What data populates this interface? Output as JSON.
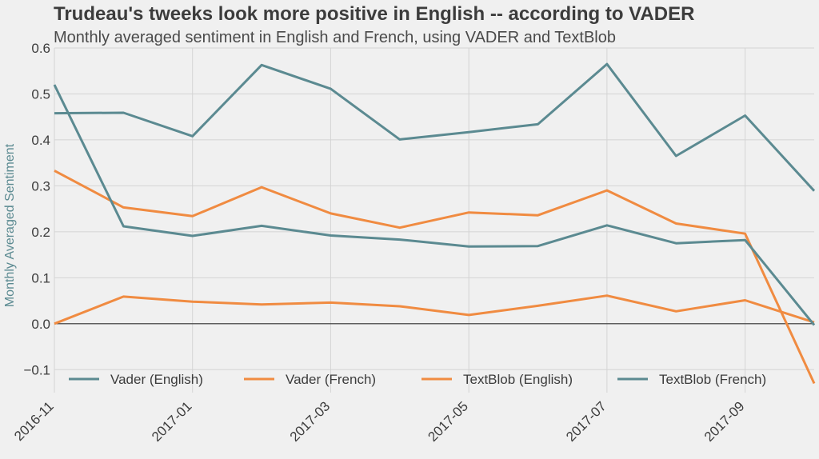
{
  "chart_data": {
    "type": "line",
    "title": "Trudeau's tweeks look more positive in English -- according to VADER",
    "subtitle": "Monthly averaged sentiment in English and French, using VADER and TextBlob",
    "xlabel": "",
    "ylabel": "Monthly Averaged Sentiment",
    "x": [
      "2016-11",
      "2016-12",
      "2017-01",
      "2017-02",
      "2017-03",
      "2017-04",
      "2017-05",
      "2017-06",
      "2017-07",
      "2017-08",
      "2017-09",
      "2017-10"
    ],
    "xticks": [
      "2016-11",
      "2017-01",
      "2017-03",
      "2017-05",
      "2017-07",
      "2017-09"
    ],
    "ylim": [
      -0.15,
      0.6
    ],
    "yticks": [
      0.6,
      0.5,
      0.4,
      0.3,
      0.2,
      0.1,
      0.0,
      -0.1
    ],
    "ytick_labels": [
      "0.6",
      "0.5",
      "0.4",
      "0.3",
      "0.2",
      "0.1",
      "0.0",
      "−0.1"
    ],
    "grid": true,
    "legend_position": "bottom",
    "series": [
      {
        "name": "Vader (English)",
        "color": "#5b8a91",
        "values": [
          0.458,
          0.459,
          0.408,
          0.563,
          0.511,
          0.401,
          0.417,
          0.434,
          0.565,
          0.365,
          0.453,
          0.289
        ]
      },
      {
        "name": "Vader (French)",
        "color": "#f08b41",
        "values": [
          0.333,
          0.253,
          0.234,
          0.297,
          0.24,
          0.209,
          0.242,
          0.236,
          0.29,
          0.218,
          0.196,
          -0.13
        ]
      },
      {
        "name": "TextBlob (English)",
        "color": "#f08b41",
        "values": [
          0.0,
          0.059,
          0.048,
          0.042,
          0.046,
          0.038,
          0.019,
          0.039,
          0.061,
          0.027,
          0.051,
          0.003
        ]
      },
      {
        "name": "TextBlob (French)",
        "color": "#5b8a91",
        "values": [
          0.52,
          0.212,
          0.191,
          0.213,
          0.192,
          0.183,
          0.168,
          0.169,
          0.214,
          0.175,
          0.182,
          -0.003
        ]
      }
    ]
  }
}
